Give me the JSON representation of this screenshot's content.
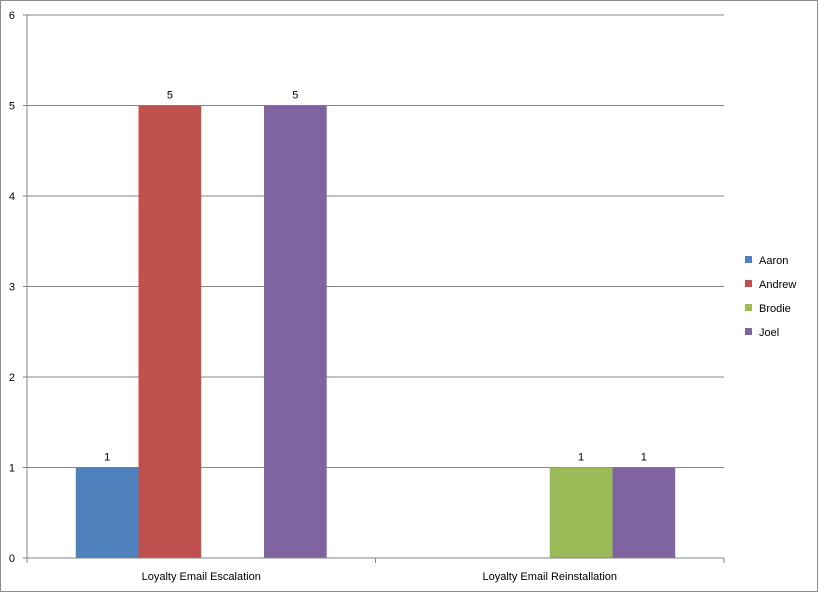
{
  "chart_data": {
    "type": "bar",
    "categories": [
      "Loyalty Email Escalation",
      "Loyalty Email Reinstallation"
    ],
    "series": [
      {
        "name": "Aaron",
        "color": "#4F81BD",
        "values": [
          1,
          0
        ]
      },
      {
        "name": "Andrew",
        "color": "#C0504D",
        "values": [
          5,
          0
        ]
      },
      {
        "name": "Brodie",
        "color": "#9BBB59",
        "values": [
          0,
          1
        ]
      },
      {
        "name": "Joel",
        "color": "#8064A2",
        "values": [
          5,
          1
        ]
      }
    ],
    "ylim": [
      0,
      6
    ],
    "yticks": [
      "0",
      "1",
      "2",
      "3",
      "4",
      "5",
      "6"
    ],
    "grid": true,
    "legend_position": "right",
    "data_labels": true
  }
}
